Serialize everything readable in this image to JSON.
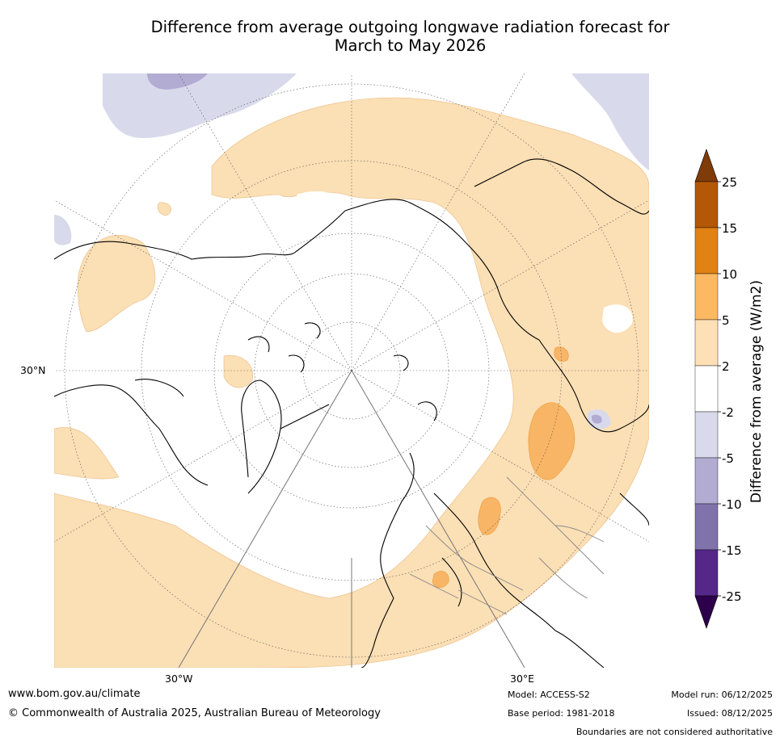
{
  "title": {
    "line1": "Difference from average outgoing longwave radiation forecast for",
    "line2": "March to May 2026"
  },
  "map": {
    "projection": "north-polar-stereographic",
    "lat_label": "30°N",
    "lon_labels": [
      "30°W",
      "30°E"
    ]
  },
  "colorbar": {
    "label": "Difference from average (W/m2)",
    "ticks": [
      "25",
      "15",
      "10",
      "5",
      "2",
      "-2",
      "-5",
      "-10",
      "-15",
      "-25"
    ],
    "colors": [
      "#7f3b08",
      "#b35806",
      "#e08214",
      "#fdb863",
      "#fee0b6",
      "#ffffff",
      "#d8daeb",
      "#b2abd2",
      "#8073ac",
      "#542788",
      "#2d004b"
    ]
  },
  "footer": {
    "url": "www.bom.gov.au/climate",
    "copyright": "© Commonwealth of Australia 2025, Australian Bureau of Meteorology",
    "model": "Model: ACCESS-S2",
    "base_period": "Base period: 1981-2018",
    "model_run": "Model run: 06/12/2025",
    "issued": "Issued: 08/12/2025",
    "disclaimer": "Boundaries are not considered authoritative"
  }
}
